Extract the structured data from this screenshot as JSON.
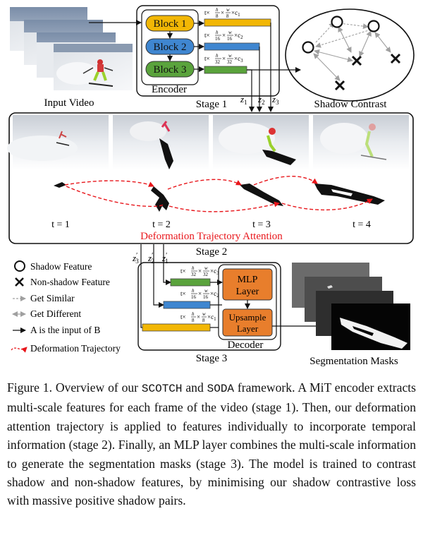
{
  "figure": {
    "input_video_label": "Input Video",
    "encoder": {
      "label": "Encoder",
      "stage_label": "Stage 1",
      "blocks": [
        "Block 1",
        "Block 2",
        "Block 3"
      ],
      "feature_labels": [
        {
          "t": "t×",
          "h": "h",
          "hd": "8",
          "w": "w",
          "wd": "8",
          "c": "×c",
          "ci": "1"
        },
        {
          "t": "t×",
          "h": "h",
          "hd": "16",
          "w": "w",
          "wd": "16",
          "c": "×c",
          "ci": "2"
        },
        {
          "t": "t×",
          "h": "h",
          "hd": "32",
          "w": "w",
          "wd": "32",
          "c": "×c",
          "ci": "3"
        }
      ],
      "z_labels": [
        {
          "z": "z",
          "i": "1"
        },
        {
          "z": "z",
          "i": "2"
        },
        {
          "z": "z",
          "i": "3"
        }
      ]
    },
    "shadow_contrast_label": "Shadow Contrast",
    "stage2": {
      "time_labels": [
        "t = 1",
        "t = 2",
        "t = 3",
        "t = 4"
      ],
      "attention_label": "Deformation Trajectory Attention",
      "stage_label": "Stage 2",
      "zprime_labels": [
        {
          "z": "z",
          "p": "′",
          "i": "3"
        },
        {
          "z": "z",
          "p": "′",
          "i": "2"
        },
        {
          "z": "z",
          "p": "′",
          "i": "1"
        }
      ]
    },
    "legend": [
      {
        "icon": "circle",
        "label": "Shadow Feature"
      },
      {
        "icon": "cross",
        "label": "Non-shadow Feature"
      },
      {
        "icon": "dashed-gray-arrow",
        "label": "Get Similar"
      },
      {
        "icon": "double-gray-arrow",
        "label": "Get Different"
      },
      {
        "icon": "black-arrow",
        "label": "A is the input of B"
      },
      {
        "icon": "red-dashed-arrow",
        "label": "Deformation Trajectory"
      }
    ],
    "decoder": {
      "mlp_label_1": "MLP",
      "mlp_label_2": "Layer",
      "upsample_label_1": "Upsample",
      "upsample_label_2": "Layer",
      "label": "Decoder",
      "stage_label": "Stage 3",
      "feature_labels": [
        {
          "t": "t×",
          "h": "h",
          "hd": "32",
          "w": "w",
          "wd": "32",
          "c": "×c",
          "ci": "3"
        },
        {
          "t": "t×",
          "h": "h",
          "hd": "16",
          "w": "w",
          "wd": "16",
          "c": "×c",
          "ci": "2"
        },
        {
          "t": "t×",
          "h": "h",
          "hd": "8",
          "w": "w",
          "wd": "8",
          "c": "×c",
          "ci": "1"
        }
      ]
    },
    "segmentation_label": "Segmentation Masks",
    "colors": {
      "block1": "#f2b705",
      "block2": "#3f86d0",
      "block3": "#5aa33c",
      "mlp": "#e87e2c",
      "trajectory": "#e8161b",
      "attention_text": "#e8161b",
      "gray_arrow": "#a0a0a0"
    }
  },
  "caption": {
    "p1": "Figure 1. Overview of our ",
    "scotch": "SCOTCH",
    "p2": " and ",
    "soda": "SODA",
    "p3": " framework. A MiT encoder extracts multi-scale features for each frame of the video (stage 1). Then, our deformation attention trajectory is applied to features individually to incorporate temporal information (stage 2). Finally, an MLP layer combines the multi-scale information to generate the segmentation masks (stage 3). The model is trained to contrast shadow and non-shadow features, by minimising our shadow contrastive loss with massive positive shadow pairs."
  }
}
